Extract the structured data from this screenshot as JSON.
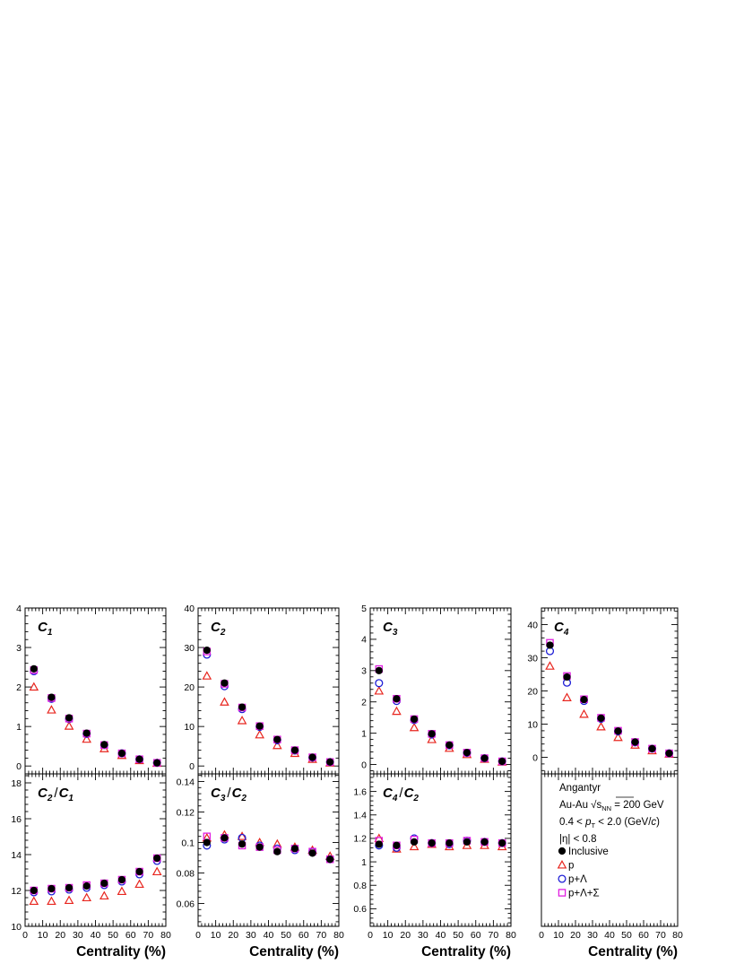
{
  "colors": {
    "inclusive": "#000000",
    "p": "#e8261f",
    "p_lambda": "#1f1fd6",
    "p_lambda_sigma": "#e01ee0",
    "axis": "#000000"
  },
  "legend": {
    "title": "Angantyr",
    "system_prefix": "Au-Au ",
    "sqrt": "√",
    "s": "s",
    "nn_sub": "NN",
    "system_suffix": " = 200 GeV",
    "pt_left": "0.4 < ",
    "pt_p": "p",
    "pt_sub": "T",
    "pt_right": " < 2.0 (GeV/",
    "pt_c": "c",
    "pt_close": ")",
    "eta": "|η| < 0.8",
    "series_labels": [
      "Inclusive",
      "p",
      "p+Λ",
      "p+Λ+Σ"
    ]
  },
  "chart_data": [
    {
      "type": "scatter",
      "label": {
        "main": "C",
        "sub": "1"
      },
      "xlabel": "",
      "xlim": [
        0,
        80
      ],
      "ylim": [
        -0.2,
        4
      ],
      "yticks": [
        "0",
        "1",
        "2",
        "3",
        "4"
      ],
      "ytick_values": [
        0,
        1,
        2,
        3,
        4
      ],
      "x": [
        5,
        15,
        25,
        35,
        45,
        55,
        65,
        75
      ],
      "series": [
        {
          "name": "Inclusive",
          "values": [
            2.46,
            1.74,
            1.22,
            0.83,
            0.54,
            0.32,
            0.17,
            0.08
          ]
        },
        {
          "name": "p",
          "values": [
            2.0,
            1.42,
            1.01,
            0.68,
            0.44,
            0.27,
            0.14,
            0.07
          ]
        },
        {
          "name": "p+Λ",
          "values": [
            2.4,
            1.7,
            1.19,
            0.81,
            0.53,
            0.32,
            0.17,
            0.08
          ]
        },
        {
          "name": "p+Λ+Σ",
          "values": [
            2.43,
            1.72,
            1.2,
            0.82,
            0.53,
            0.32,
            0.17,
            0.08
          ]
        }
      ]
    },
    {
      "type": "scatter",
      "label": {
        "main": "C",
        "sub": "2"
      },
      "xlabel": "",
      "xlim": [
        0,
        80
      ],
      "ylim": [
        -2,
        40
      ],
      "yticks": [
        "0",
        "10",
        "20",
        "30",
        "40"
      ],
      "ytick_values": [
        0,
        10,
        20,
        30,
        40
      ],
      "x": [
        5,
        15,
        25,
        35,
        45,
        55,
        65,
        75
      ],
      "series": [
        {
          "name": "Inclusive",
          "values": [
            29.3,
            21.0,
            14.9,
            10.1,
            6.7,
            4.0,
            2.2,
            1.0
          ]
        },
        {
          "name": "p",
          "values": [
            22.8,
            16.2,
            11.5,
            7.9,
            5.2,
            3.2,
            1.7,
            0.8
          ]
        },
        {
          "name": "p+Λ",
          "values": [
            28.2,
            20.2,
            14.4,
            9.9,
            6.5,
            3.9,
            2.1,
            1.0
          ]
        },
        {
          "name": "p+Λ+Σ",
          "values": [
            29.0,
            20.8,
            14.8,
            10.1,
            6.7,
            4.0,
            2.2,
            1.0
          ]
        }
      ]
    },
    {
      "type": "scatter",
      "label": {
        "main": "C",
        "sub": "3"
      },
      "xlabel": "",
      "xlim": [
        0,
        80
      ],
      "ylim": [
        -0.3,
        5
      ],
      "yticks": [
        "0",
        "1",
        "2",
        "3",
        "4",
        "5"
      ],
      "ytick_values": [
        0,
        1,
        2,
        3,
        4,
        5
      ],
      "x": [
        5,
        15,
        25,
        35,
        45,
        55,
        65,
        75
      ],
      "series": [
        {
          "name": "Inclusive",
          "values": [
            3.0,
            2.1,
            1.45,
            0.98,
            0.62,
            0.38,
            0.2,
            0.1
          ]
        },
        {
          "name": "p",
          "values": [
            2.35,
            1.7,
            1.18,
            0.8,
            0.52,
            0.32,
            0.17,
            0.08
          ]
        },
        {
          "name": "p+Λ",
          "values": [
            2.6,
            2.03,
            1.42,
            0.96,
            0.61,
            0.37,
            0.2,
            0.1
          ]
        },
        {
          "name": "p+Λ+Σ",
          "values": [
            3.05,
            2.1,
            1.45,
            0.98,
            0.62,
            0.38,
            0.2,
            0.1
          ]
        }
      ]
    },
    {
      "type": "scatter",
      "label": {
        "main": "C",
        "sub": "4"
      },
      "xlabel": "",
      "xlim": [
        0,
        80
      ],
      "ylim": [
        -5,
        45
      ],
      "yticks": [
        "0",
        "10",
        "20",
        "30",
        "40"
      ],
      "ytick_values": [
        0,
        10,
        20,
        30,
        40
      ],
      "x": [
        5,
        15,
        25,
        35,
        45,
        55,
        65,
        75
      ],
      "series": [
        {
          "name": "Inclusive",
          "values": [
            33.8,
            24.2,
            17.4,
            11.8,
            7.9,
            4.6,
            2.6,
            1.2
          ]
        },
        {
          "name": "p",
          "values": [
            27.5,
            18.0,
            13.0,
            9.2,
            6.0,
            3.7,
            2.0,
            1.0
          ]
        },
        {
          "name": "p+Λ",
          "values": [
            32.0,
            22.5,
            17.0,
            11.6,
            7.8,
            4.5,
            2.6,
            1.2
          ]
        },
        {
          "name": "p+Λ+Σ",
          "values": [
            34.5,
            24.5,
            17.5,
            11.9,
            8.0,
            4.6,
            2.6,
            1.2
          ]
        }
      ]
    },
    {
      "type": "scatter",
      "label": {
        "main": "C",
        "sub": "2",
        "slash": "/",
        "den": "C",
        "den_sub": "1"
      },
      "xlabel": "Centrality (%)",
      "xlim": [
        0,
        80
      ],
      "xticks": [
        "0",
        "10",
        "20",
        "30",
        "40",
        "50",
        "60",
        "70",
        "80"
      ],
      "ylim": [
        10,
        18.5
      ],
      "yticks": [
        "10",
        "12",
        "14",
        "16",
        "18"
      ],
      "ytick_values": [
        10,
        12,
        14,
        16,
        18
      ],
      "x": [
        5,
        15,
        25,
        35,
        45,
        55,
        65,
        75
      ],
      "series": [
        {
          "name": "Inclusive",
          "values": [
            12.0,
            12.1,
            12.15,
            12.25,
            12.4,
            12.6,
            13.05,
            13.8
          ]
        },
        {
          "name": "p",
          "values": [
            11.4,
            11.4,
            11.45,
            11.6,
            11.7,
            11.95,
            12.35,
            13.05
          ]
        },
        {
          "name": "p+Λ",
          "values": [
            11.9,
            11.95,
            12.05,
            12.15,
            12.3,
            12.5,
            12.9,
            13.65
          ]
        },
        {
          "name": "p+Λ+Σ",
          "values": [
            12.0,
            12.1,
            12.15,
            12.3,
            12.4,
            12.6,
            13.05,
            13.8
          ]
        }
      ]
    },
    {
      "type": "scatter",
      "label": {
        "main": "C",
        "sub": "3",
        "slash": "/",
        "den": "C",
        "den_sub": "2"
      },
      "xlabel": "Centrality (%)",
      "xlim": [
        0,
        80
      ],
      "xticks": [
        "0",
        "10",
        "20",
        "30",
        "40",
        "50",
        "60",
        "70",
        "80"
      ],
      "ylim": [
        0.045,
        0.145
      ],
      "yticks": [
        "0.06",
        "0.08",
        "0.1",
        "0.12",
        "0.14"
      ],
      "ytick_values": [
        0.06,
        0.08,
        0.1,
        0.12,
        0.14
      ],
      "x": [
        5,
        15,
        25,
        35,
        45,
        55,
        65,
        75
      ],
      "series": [
        {
          "name": "Inclusive",
          "values": [
            0.1,
            0.103,
            0.099,
            0.097,
            0.094,
            0.096,
            0.093,
            0.089
          ]
        },
        {
          "name": "p",
          "values": [
            0.103,
            0.105,
            0.104,
            0.1,
            0.099,
            0.097,
            0.095,
            0.091
          ]
        },
        {
          "name": "p+Λ",
          "values": [
            0.098,
            0.102,
            0.103,
            0.098,
            0.096,
            0.095,
            0.094,
            0.089
          ]
        },
        {
          "name": "p+Λ+Σ",
          "values": [
            0.104,
            0.103,
            0.098,
            0.097,
            0.095,
            0.096,
            0.094,
            0.089
          ]
        }
      ]
    },
    {
      "type": "scatter",
      "label": {
        "main": "C",
        "sub": "4",
        "slash": "/",
        "den": "C",
        "den_sub": "2"
      },
      "xlabel": "Centrality (%)",
      "xlim": [
        0,
        80
      ],
      "xticks": [
        "0",
        "10",
        "20",
        "30",
        "40",
        "50",
        "60",
        "70",
        "80"
      ],
      "ylim": [
        0.45,
        1.75
      ],
      "yticks": [
        "0.6",
        "0.8",
        "1",
        "1.2",
        "1.4",
        "1.6"
      ],
      "ytick_values": [
        0.6,
        0.8,
        1.0,
        1.2,
        1.4,
        1.6
      ],
      "x": [
        5,
        15,
        25,
        35,
        45,
        55,
        65,
        75
      ],
      "series": [
        {
          "name": "Inclusive",
          "values": [
            1.15,
            1.14,
            1.17,
            1.16,
            1.16,
            1.17,
            1.17,
            1.16
          ]
        },
        {
          "name": "p",
          "values": [
            1.2,
            1.11,
            1.13,
            1.15,
            1.13,
            1.14,
            1.14,
            1.13
          ]
        },
        {
          "name": "p+Λ",
          "values": [
            1.14,
            1.12,
            1.2,
            1.16,
            1.15,
            1.18,
            1.17,
            1.16
          ]
        },
        {
          "name": "p+Λ+Σ",
          "values": [
            1.18,
            1.14,
            1.19,
            1.16,
            1.16,
            1.18,
            1.17,
            1.16
          ]
        }
      ]
    },
    {
      "type": "scatter",
      "label": null,
      "xlabel": "Centrality (%)",
      "xlim": [
        0,
        80
      ],
      "xticks": [
        "0",
        "10",
        "20",
        "30",
        "40",
        "50",
        "60",
        "70",
        "80"
      ],
      "ylim": [
        0,
        1
      ],
      "yticks": [],
      "x": [],
      "series": []
    }
  ]
}
